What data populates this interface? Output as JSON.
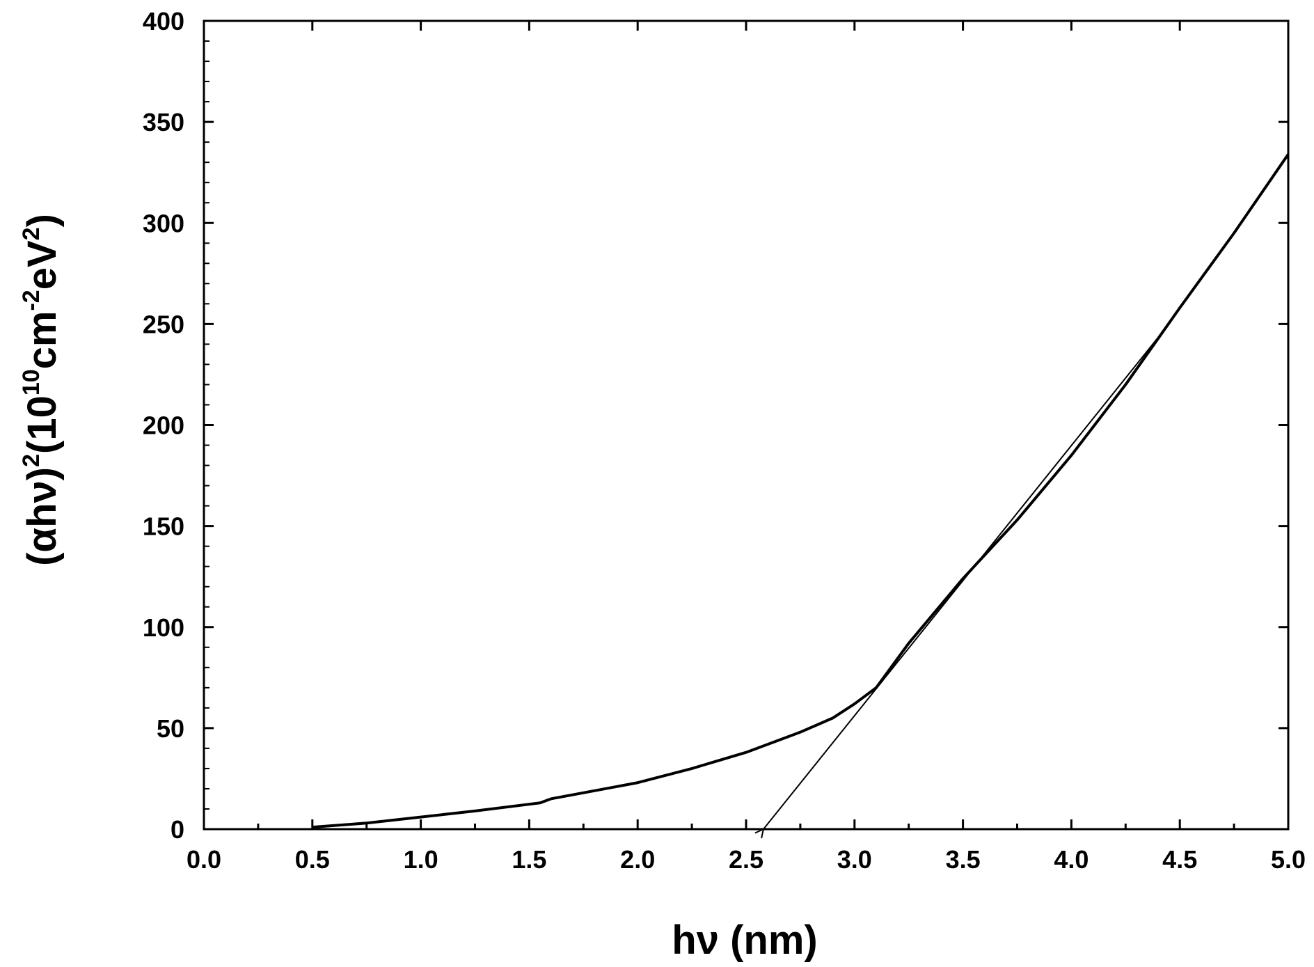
{
  "chart_data": {
    "type": "line",
    "title": "",
    "xlabel": "hν (nm)",
    "ylabel": {
      "base": "(αhν)",
      "exp1": "2",
      "mid": "(10",
      "exp2": "10",
      "unit1": "cm",
      "exp3": "-2",
      "unit2": "eV",
      "exp4": "2",
      "close": ")"
    },
    "xlim": [
      0.0,
      5.0
    ],
    "ylim": [
      0,
      400
    ],
    "x_ticks": [
      "0.0",
      "0.5",
      "1.0",
      "1.5",
      "2.0",
      "2.5",
      "3.0",
      "3.5",
      "4.0",
      "4.5",
      "5.0"
    ],
    "y_ticks": [
      "0",
      "50",
      "100",
      "150",
      "200",
      "250",
      "300",
      "350",
      "400"
    ],
    "grid": false,
    "legend": "none",
    "series": [
      {
        "x": [
          0.5,
          0.75,
          1.0,
          1.25,
          1.55,
          1.6,
          2.0,
          2.25,
          2.5,
          2.75,
          2.9,
          3.0,
          3.1,
          3.25,
          3.5,
          3.75,
          4.0,
          4.25,
          4.5,
          4.75,
          5.0
        ],
        "y": [
          1,
          3,
          6,
          9,
          13,
          15,
          23,
          30,
          38,
          48,
          55,
          62,
          70,
          92,
          124,
          153,
          185,
          220,
          258,
          295,
          334
        ]
      }
    ],
    "tangent_line": {
      "x": [
        2.58,
        4.42
      ],
      "y": [
        0,
        246
      ],
      "arrow_at": "start"
    }
  }
}
